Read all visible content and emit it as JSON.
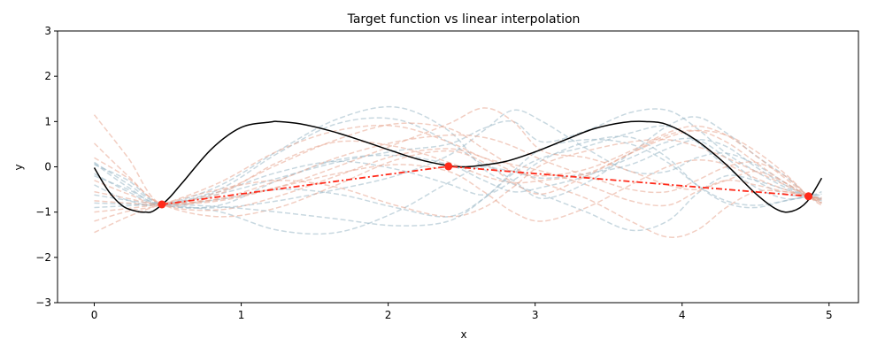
{
  "chart_data": {
    "type": "line",
    "title": "Target function vs linear interpolation",
    "xlabel": "x",
    "ylabel": "y",
    "xlim": [
      -0.25,
      5.2
    ],
    "ylim": [
      -3,
      3
    ],
    "xticks": [
      "0",
      "1",
      "2",
      "3",
      "4",
      "5"
    ],
    "yticks": [
      "−3",
      "−2",
      "−1",
      "0",
      "1",
      "2",
      "3"
    ],
    "grid": false,
    "colors": {
      "target": "#000000",
      "interpolation": "#ff2a1a",
      "sample_blue": "#9bb8c6",
      "sample_red": "#e7a58f"
    },
    "target_function": {
      "x": [
        0.0,
        0.1,
        0.2,
        0.3,
        0.35,
        0.4,
        0.5,
        0.6,
        0.8,
        1.0,
        1.2,
        1.25,
        1.4,
        1.6,
        1.8,
        2.0,
        2.2,
        2.4,
        2.5,
        2.6,
        2.8,
        3.0,
        3.2,
        3.4,
        3.6,
        3.75,
        3.9,
        4.1,
        4.3,
        4.5,
        4.65,
        4.75,
        4.85,
        4.95
      ],
      "y": [
        -0.02,
        -0.55,
        -0.88,
        -0.99,
        -1.0,
        -0.98,
        -0.72,
        -0.35,
        0.4,
        0.87,
        0.99,
        1.0,
        0.95,
        0.8,
        0.6,
        0.38,
        0.17,
        0.03,
        0.0,
        0.02,
        0.12,
        0.33,
        0.59,
        0.84,
        0.98,
        1.0,
        0.93,
        0.58,
        0.05,
        -0.59,
        -0.95,
        -0.98,
        -0.77,
        -0.25
      ]
    },
    "interpolation": {
      "x": [
        0.46,
        2.41,
        4.86
      ],
      "y": [
        -0.83,
        0.01,
        -0.65
      ]
    },
    "samples": [
      {
        "color": "blue",
        "y": [
          0.08,
          -0.45,
          -0.82,
          -0.55,
          -0.12,
          0.12,
          -0.05,
          -0.38,
          -0.62,
          -0.3,
          0.15
        ]
      },
      {
        "color": "blue",
        "y": [
          -0.4,
          -0.74,
          -0.83,
          -0.42,
          0.35,
          1.05,
          1.32,
          0.8,
          -0.05,
          -0.38,
          -0.62
        ]
      },
      {
        "color": "blue",
        "y": [
          0.1,
          -0.38,
          -0.83,
          -0.9,
          -0.75,
          -0.5,
          -0.2,
          0.25,
          0.8,
          1.25,
          1.0
        ]
      },
      {
        "color": "blue",
        "y": [
          -0.62,
          -0.74,
          -0.83,
          -0.99,
          -1.4,
          -1.45,
          -1.0,
          -0.35,
          0.0,
          -0.3,
          -0.7
        ]
      },
      {
        "color": "blue",
        "y": [
          -0.15,
          -0.55,
          -0.83,
          -0.6,
          -0.25,
          0.1,
          0.35,
          0.5,
          0.85,
          1.0,
          0.55
        ]
      },
      {
        "color": "blue",
        "y": [
          -0.8,
          -0.82,
          -0.83,
          -0.5,
          0.3,
          0.95,
          1.05,
          0.55,
          0.05,
          -0.1,
          -0.25
        ]
      },
      {
        "color": "blue",
        "y": [
          -0.2,
          -0.5,
          -0.83,
          -0.72,
          -0.5,
          -0.6,
          -0.9,
          -1.1,
          -0.7,
          -0.15,
          0.2
        ]
      },
      {
        "color": "blue",
        "y": [
          0.05,
          -0.3,
          -0.83,
          -0.85,
          -0.3,
          0.15,
          0.25,
          0.05,
          -0.3,
          -0.55,
          -0.45
        ]
      },
      {
        "color": "red",
        "y": [
          1.15,
          0.2,
          -0.83,
          -0.6,
          0.1,
          0.55,
          0.45,
          0.1,
          -0.2,
          -0.35,
          -0.3
        ]
      },
      {
        "color": "red",
        "y": [
          -1.2,
          -0.98,
          -0.83,
          -0.35,
          0.35,
          0.8,
          0.9,
          0.55,
          0.2,
          0.05,
          -0.1
        ]
      },
      {
        "color": "red",
        "y": [
          0.52,
          -0.2,
          -0.83,
          -0.95,
          -0.65,
          -0.2,
          0.25,
          0.4,
          0.2,
          -0.1,
          -0.2
        ]
      },
      {
        "color": "red",
        "y": [
          -1.45,
          -1.1,
          -0.83,
          -0.5,
          -0.3,
          -0.45,
          -0.85,
          -1.1,
          -0.9,
          -0.45,
          0.05
        ]
      },
      {
        "color": "red",
        "y": [
          -0.3,
          -0.6,
          -0.83,
          -0.55,
          0.05,
          0.6,
          0.95,
          0.85,
          0.4,
          0.0,
          -0.35
        ]
      },
      {
        "color": "red",
        "y": [
          -1.0,
          -0.92,
          -0.83,
          -0.72,
          -0.45,
          -0.15,
          0.05,
          -0.1,
          -0.55,
          -1.0,
          -1.2
        ]
      },
      {
        "color": "red",
        "y": [
          0.2,
          -0.25,
          -0.83,
          -1.1,
          -0.9,
          -0.4,
          0.15,
          0.35,
          0.1,
          -0.35,
          -0.6
        ]
      },
      {
        "color": "red",
        "y": [
          -0.55,
          -0.7,
          -0.83,
          -0.75,
          -0.45,
          0.0,
          0.5,
          0.95,
          1.3,
          1.0,
          0.35
        ]
      },
      {
        "color": "blue",
        "y": [
          -0.9,
          -0.86,
          -0.83,
          -0.88,
          -1.0,
          -1.15,
          -1.3,
          -1.2,
          -0.7,
          -0.1,
          0.4
        ]
      },
      {
        "color": "red",
        "y": [
          -0.75,
          -0.8,
          -0.83,
          -0.7,
          -0.3,
          0.2,
          0.55,
          0.7,
          0.65,
          0.45,
          0.15
        ]
      }
    ],
    "sample_x": [
      0.0,
      0.23,
      0.46,
      0.85,
      1.25,
      1.65,
      2.05,
      2.41,
      2.65,
      2.85,
      3.05
    ],
    "samples_right": [
      {
        "color": "blue",
        "y": [
          0.15,
          0.55,
          0.65,
          0.2,
          -0.4,
          -0.8,
          -0.9,
          -0.75,
          -0.65,
          -0.62
        ]
      },
      {
        "color": "blue",
        "y": [
          -0.62,
          -1.0,
          -1.4,
          -1.2,
          -0.6,
          -0.2,
          -0.3,
          -0.5,
          -0.65,
          -0.7
        ]
      },
      {
        "color": "blue",
        "y": [
          1.0,
          0.4,
          -0.1,
          -0.1,
          0.2,
          0.3,
          0.05,
          -0.35,
          -0.65,
          -0.75
        ]
      },
      {
        "color": "blue",
        "y": [
          -0.7,
          -0.35,
          0.3,
          0.9,
          1.1,
          0.75,
          0.25,
          -0.2,
          -0.65,
          -0.8
        ]
      },
      {
        "color": "blue",
        "y": [
          0.55,
          0.8,
          1.2,
          1.25,
          0.85,
          0.3,
          -0.1,
          -0.45,
          -0.65,
          -0.72
        ]
      },
      {
        "color": "blue",
        "y": [
          -0.25,
          -0.15,
          0.05,
          0.4,
          0.6,
          0.45,
          0.0,
          -0.4,
          -0.65,
          -0.7
        ]
      },
      {
        "color": "blue",
        "y": [
          0.2,
          0.45,
          0.75,
          0.9,
          0.55,
          0.0,
          -0.45,
          -0.7,
          -0.65,
          -0.55
        ]
      },
      {
        "color": "blue",
        "y": [
          -0.45,
          -0.2,
          0.2,
          0.55,
          0.6,
          0.2,
          -0.3,
          -0.6,
          -0.65,
          -0.68
        ]
      },
      {
        "color": "red",
        "y": [
          -0.3,
          -0.15,
          0.3,
          0.65,
          0.8,
          0.7,
          0.35,
          -0.15,
          -0.65,
          -0.85
        ]
      },
      {
        "color": "red",
        "y": [
          -0.1,
          -0.4,
          -0.75,
          -0.85,
          -0.55,
          -0.3,
          -0.4,
          -0.55,
          -0.65,
          -0.7
        ]
      },
      {
        "color": "red",
        "y": [
          -0.2,
          -0.05,
          0.35,
          0.75,
          0.9,
          0.7,
          0.25,
          -0.25,
          -0.65,
          -0.8
        ]
      },
      {
        "color": "red",
        "y": [
          0.05,
          0.35,
          0.55,
          0.6,
          0.45,
          0.2,
          -0.1,
          -0.4,
          -0.65,
          -0.75
        ]
      },
      {
        "color": "red",
        "y": [
          -0.35,
          -0.7,
          -1.2,
          -1.55,
          -1.4,
          -0.9,
          -0.55,
          -0.55,
          -0.65,
          -0.72
        ]
      },
      {
        "color": "red",
        "y": [
          -1.2,
          -0.9,
          -0.4,
          0.0,
          0.15,
          0.05,
          -0.25,
          -0.5,
          -0.65,
          -0.68
        ]
      },
      {
        "color": "red",
        "y": [
          -0.6,
          -0.2,
          0.3,
          0.7,
          0.8,
          0.55,
          0.1,
          -0.35,
          -0.65,
          -0.8
        ]
      },
      {
        "color": "red",
        "y": [
          0.35,
          0.2,
          -0.1,
          -0.4,
          -0.5,
          -0.3,
          -0.1,
          -0.35,
          -0.65,
          -0.72
        ]
      },
      {
        "color": "blue",
        "y": [
          0.4,
          0.6,
          0.5,
          0.1,
          -0.4,
          -0.75,
          -0.85,
          -0.75,
          -0.65,
          -0.6
        ]
      },
      {
        "color": "red",
        "y": [
          0.15,
          -0.2,
          -0.5,
          -0.55,
          -0.3,
          0.0,
          0.1,
          -0.2,
          -0.65,
          -0.78
        ]
      }
    ],
    "sample_x_right": [
      3.05,
      3.35,
      3.65,
      3.9,
      4.1,
      4.3,
      4.5,
      4.7,
      4.86,
      4.95
    ]
  }
}
